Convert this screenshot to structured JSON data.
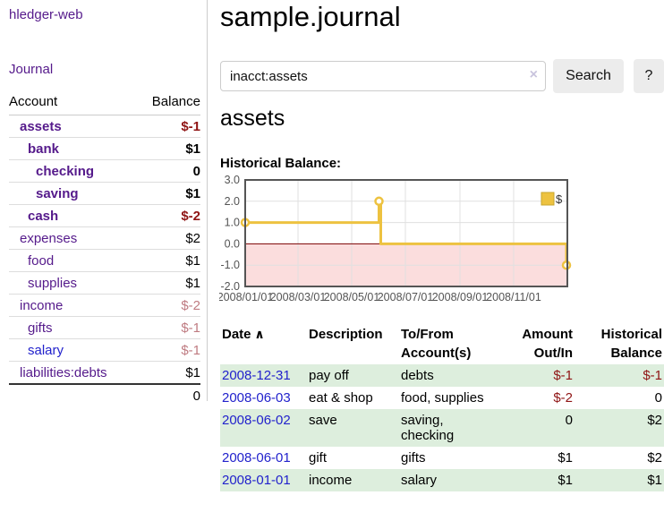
{
  "app": {
    "brand": "hledger-web",
    "nav_journal": "Journal"
  },
  "colors": {
    "link_purple": "#551A8B",
    "link_blue": "#2222cc",
    "negative_strong": "#8f1414",
    "negative_soft": "#bf7b81",
    "row_stripe_green": "#ddeedd",
    "chart_line_gold": "#edc240",
    "chart_negative_fill": "#fbdddd",
    "chart_zero_line": "#7a0000"
  },
  "sidebar": {
    "header": {
      "account": "Account",
      "balance": "Balance"
    },
    "accounts": [
      {
        "name": "assets",
        "balance": "$-1",
        "depth": 1,
        "bold": true,
        "negative": "strong",
        "link": "purple"
      },
      {
        "name": "bank",
        "balance": "$1",
        "depth": 2,
        "bold": true,
        "negative": "none",
        "link": "purple"
      },
      {
        "name": "checking",
        "balance": "0",
        "depth": 3,
        "bold": true,
        "negative": "none",
        "link": "purple"
      },
      {
        "name": "saving",
        "balance": "$1",
        "depth": 3,
        "bold": true,
        "negative": "none",
        "link": "purple"
      },
      {
        "name": "cash",
        "balance": "$-2",
        "depth": 2,
        "bold": true,
        "negative": "strong",
        "link": "purple"
      },
      {
        "name": "expenses",
        "balance": "$2",
        "depth": 1,
        "bold": false,
        "negative": "none",
        "link": "purple"
      },
      {
        "name": "food",
        "balance": "$1",
        "depth": 2,
        "bold": false,
        "negative": "none",
        "link": "purple"
      },
      {
        "name": "supplies",
        "balance": "$1",
        "depth": 2,
        "bold": false,
        "negative": "none",
        "link": "purple"
      },
      {
        "name": "income",
        "balance": "$-2",
        "depth": 1,
        "bold": false,
        "negative": "soft",
        "link": "purple"
      },
      {
        "name": "gifts",
        "balance": "$-1",
        "depth": 2,
        "bold": false,
        "negative": "soft",
        "link": "purple"
      },
      {
        "name": "salary",
        "balance": "$-1",
        "depth": 2,
        "bold": false,
        "negative": "soft",
        "link": "blue"
      },
      {
        "name": "liabilities:debts",
        "balance": "$1",
        "depth": 1,
        "bold": false,
        "negative": "none",
        "link": "purple"
      }
    ],
    "total": "0"
  },
  "header": {
    "title": "sample.journal"
  },
  "search": {
    "value": "inacct:assets",
    "clear_icon": "×",
    "button": "Search",
    "help_button": "?"
  },
  "account_page": {
    "heading": "assets",
    "chart_label": "Historical Balance:"
  },
  "chart_data": {
    "type": "line",
    "step": true,
    "title": "Historical Balance:",
    "series": [
      {
        "name": "$",
        "color": "#edc240",
        "points": [
          [
            "2008-01-01",
            1
          ],
          [
            "2008-06-01",
            2
          ],
          [
            "2008-06-02",
            2
          ],
          [
            "2008-06-03",
            0
          ],
          [
            "2008-12-31",
            -1
          ]
        ]
      }
    ],
    "x_range": [
      "2008-01-01",
      "2009-01-01"
    ],
    "ylim": [
      -2,
      3
    ],
    "y_ticks": [
      "3.0",
      "2.0",
      "1.0",
      "0.0",
      "-1.0",
      "-2.0"
    ],
    "x_ticks": [
      "2008/01/01",
      "2008/03/01",
      "2008/05/01",
      "2008/07/01",
      "2008/09/01",
      "2008/11/01"
    ],
    "legend": {
      "label": "$",
      "position": "top-right"
    },
    "grid": true,
    "negative_region_shaded": true
  },
  "register": {
    "columns": [
      {
        "key": "date",
        "lines": [
          "Date"
        ],
        "align": "left",
        "sort_indicator": "∧"
      },
      {
        "key": "description",
        "lines": [
          "Description"
        ],
        "align": "left"
      },
      {
        "key": "to-from",
        "lines": [
          "To/From",
          "Account(s)"
        ],
        "align": "left"
      },
      {
        "key": "amount",
        "lines": [
          "Amount",
          "Out/In"
        ],
        "align": "right"
      },
      {
        "key": "balance",
        "lines": [
          "Historical",
          "Balance"
        ],
        "align": "right"
      }
    ],
    "rows": [
      {
        "date": "2008-12-31",
        "description": "pay off",
        "to_from_lines": [
          "debts"
        ],
        "amount": "$-1",
        "amount_negative": true,
        "balance": "$-1",
        "balance_negative": true
      },
      {
        "date": "2008-06-03",
        "description": "eat & shop",
        "to_from_lines": [
          "food, supplies"
        ],
        "amount": "$-2",
        "amount_negative": true,
        "balance": "0",
        "balance_negative": false
      },
      {
        "date": "2008-06-02",
        "description": "save",
        "to_from_lines": [
          "saving,",
          "checking"
        ],
        "amount": "0",
        "amount_negative": false,
        "balance": "$2",
        "balance_negative": false
      },
      {
        "date": "2008-06-01",
        "description": "gift",
        "to_from_lines": [
          "gifts"
        ],
        "amount": "$1",
        "amount_negative": false,
        "balance": "$2",
        "balance_negative": false
      },
      {
        "date": "2008-01-01",
        "description": "income",
        "to_from_lines": [
          "salary"
        ],
        "amount": "$1",
        "amount_negative": false,
        "balance": "$1",
        "balance_negative": false
      }
    ]
  }
}
